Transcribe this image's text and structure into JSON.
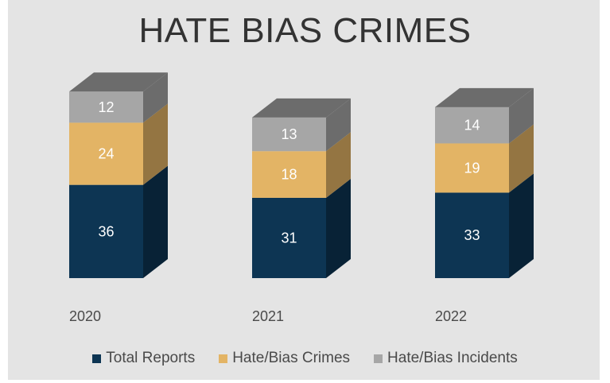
{
  "chart_data": {
    "type": "bar",
    "stacked": true,
    "title": "HATE BIAS CRIMES",
    "categories": [
      "2020",
      "2021",
      "2022"
    ],
    "series": [
      {
        "name": "Total Reports",
        "values": [
          36,
          31,
          33
        ],
        "color": "#0d3553"
      },
      {
        "name": "Hate/Bias Crimes",
        "values": [
          24,
          18,
          19
        ],
        "color": "#e3b465"
      },
      {
        "name": "Hate/Bias Incidents",
        "values": [
          12,
          13,
          14
        ],
        "color": "#a6a6a6"
      }
    ],
    "label_colors": [
      "#ffffff",
      "#ffffff",
      "#ffffff"
    ],
    "legend_position": "bottom",
    "grid": false
  }
}
